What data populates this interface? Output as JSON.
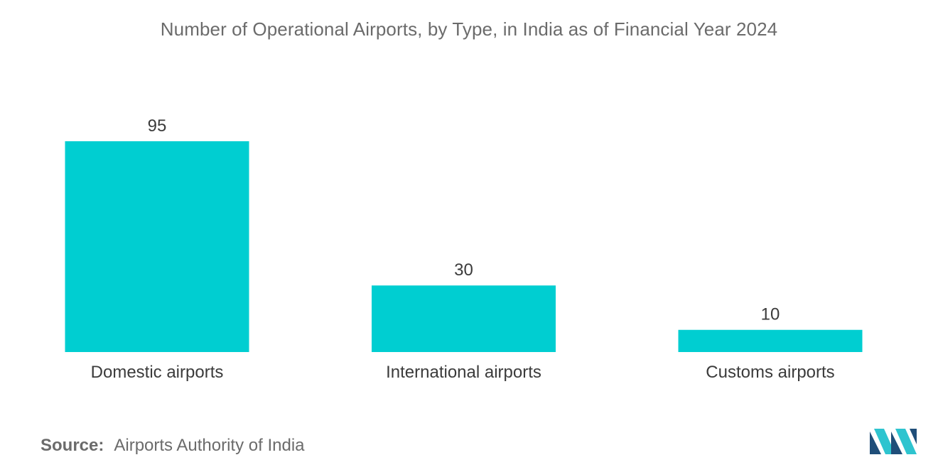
{
  "chart_data": {
    "type": "bar",
    "title": "Number of Operational Airports, by Type, in India as of Financial Year 2024",
    "categories": [
      "Domestic airports",
      "International airports",
      "Customs airports"
    ],
    "values": [
      95,
      30,
      10
    ],
    "data_labels": [
      "95",
      "30",
      "10"
    ],
    "xlabel": "",
    "ylabel": "",
    "ylim": [
      0,
      95
    ],
    "grid": false,
    "bar_color": "#00ced1"
  },
  "source": {
    "key": "Source:",
    "value": "Airports Authority of India"
  },
  "logo": {
    "icon": "mordor-intelligence-logo-icon",
    "colors": [
      "#1f4e79",
      "#2ec4cf"
    ]
  }
}
